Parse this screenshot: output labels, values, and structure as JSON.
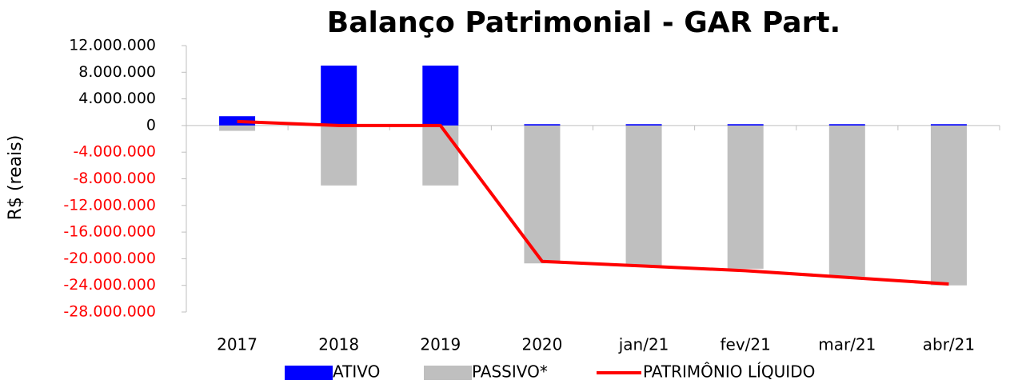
{
  "chart_data": {
    "type": "bar_line",
    "title": "Balanço Patrimonial - GAR Part.",
    "y_label": "R$ (reais)",
    "categories": [
      "2017",
      "2018",
      "2019",
      "2020",
      "jan/21",
      "fev/21",
      "mar/21",
      "abr/21"
    ],
    "series": [
      {
        "name": "ATIVO",
        "type": "bar",
        "color": "#0000ff",
        "values": [
          1400000,
          9000000,
          9000000,
          200000,
          200000,
          200000,
          200000,
          200000
        ]
      },
      {
        "name": "PASSIVO*",
        "type": "bar",
        "color": "#bfbfbf",
        "values": [
          -800000,
          -9000000,
          -9000000,
          -20700000,
          -21000000,
          -21500000,
          -22700000,
          -24000000
        ]
      },
      {
        "name": "PATRIMÔNIO LÍQUIDO",
        "type": "line",
        "color": "#ff0000",
        "values": [
          600000,
          0,
          0,
          -20400000,
          -21100000,
          -21800000,
          -22800000,
          -23800000
        ]
      }
    ],
    "ylim": [
      -28000000,
      12000000
    ],
    "yticks": [
      {
        "value": 12000000,
        "label": "12.000.000"
      },
      {
        "value": 8000000,
        "label": "8.000.000"
      },
      {
        "value": 4000000,
        "label": "4.000.000"
      },
      0,
      {
        "value": -4000000,
        "label": "-4.000.000"
      },
      {
        "value": -8000000,
        "label": "-8.000.000"
      },
      {
        "value": -12000000,
        "label": "-12.000.000"
      },
      {
        "value": -16000000,
        "label": "-16.000.000"
      },
      {
        "value": -20000000,
        "label": "-20.000.000"
      },
      {
        "value": -24000000,
        "label": "-24.000.000"
      },
      {
        "value": -28000000,
        "label": "-28.000.000"
      }
    ],
    "negative_tick_color": "#ff0000"
  }
}
